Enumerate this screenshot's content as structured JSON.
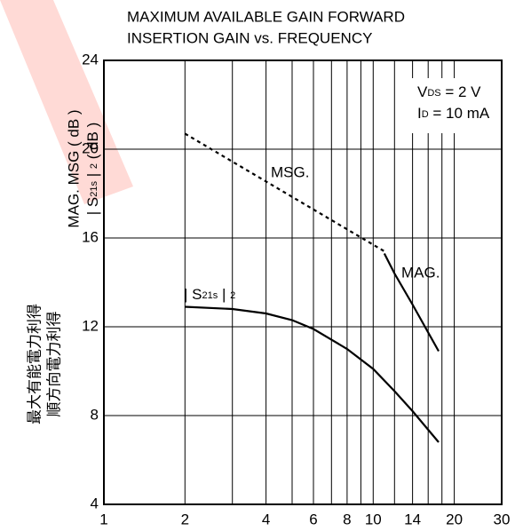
{
  "chart_data": {
    "type": "line",
    "title": [
      "MAXIMUM AVAILABLE GAIN FORWARD",
      "INSERTION GAIN vs. FREQUENCY"
    ],
    "ylabel_ja": [
      "最大有能電力利得",
      "順方向電力利得"
    ],
    "ylabel_en": [
      "MAG. MSG ( dB )",
      [
        "| S",
        "21s",
        " | ",
        "2",
        " ( dB )"
      ]
    ],
    "conditions": [
      [
        "V",
        "DS",
        " = 2 V"
      ],
      [
        "I",
        "D",
        " = 10 mA"
      ]
    ],
    "log_x": true,
    "xlim": [
      1,
      30
    ],
    "xticks": [
      1,
      2,
      4,
      6,
      8,
      10,
      14,
      20,
      30
    ],
    "xminor": [
      3,
      5,
      7,
      9,
      12,
      16,
      18
    ],
    "ylim": [
      4,
      24
    ],
    "yticks": [
      4,
      8,
      12,
      16,
      20,
      24
    ],
    "grid": true,
    "series": [
      {
        "name": "MSG.",
        "color": "#000000",
        "dashed": true,
        "x": [
          2,
          11
        ],
        "values": [
          20.7,
          15.4
        ]
      },
      {
        "name": "MAG.",
        "color": "#000000",
        "dashed": false,
        "x": [
          11,
          12,
          14,
          17.5
        ],
        "values": [
          15.3,
          14.4,
          13,
          10.9
        ]
      },
      {
        "name_parts": [
          "| S",
          "21s",
          " | ",
          "2"
        ],
        "color": "#000000",
        "dashed": false,
        "x": [
          2,
          3,
          4,
          5,
          6,
          8,
          10,
          12,
          14,
          17.5
        ],
        "values": [
          12.9,
          12.8,
          12.6,
          12.3,
          11.9,
          11,
          10.1,
          9.1,
          8.2,
          6.8
        ]
      }
    ]
  }
}
